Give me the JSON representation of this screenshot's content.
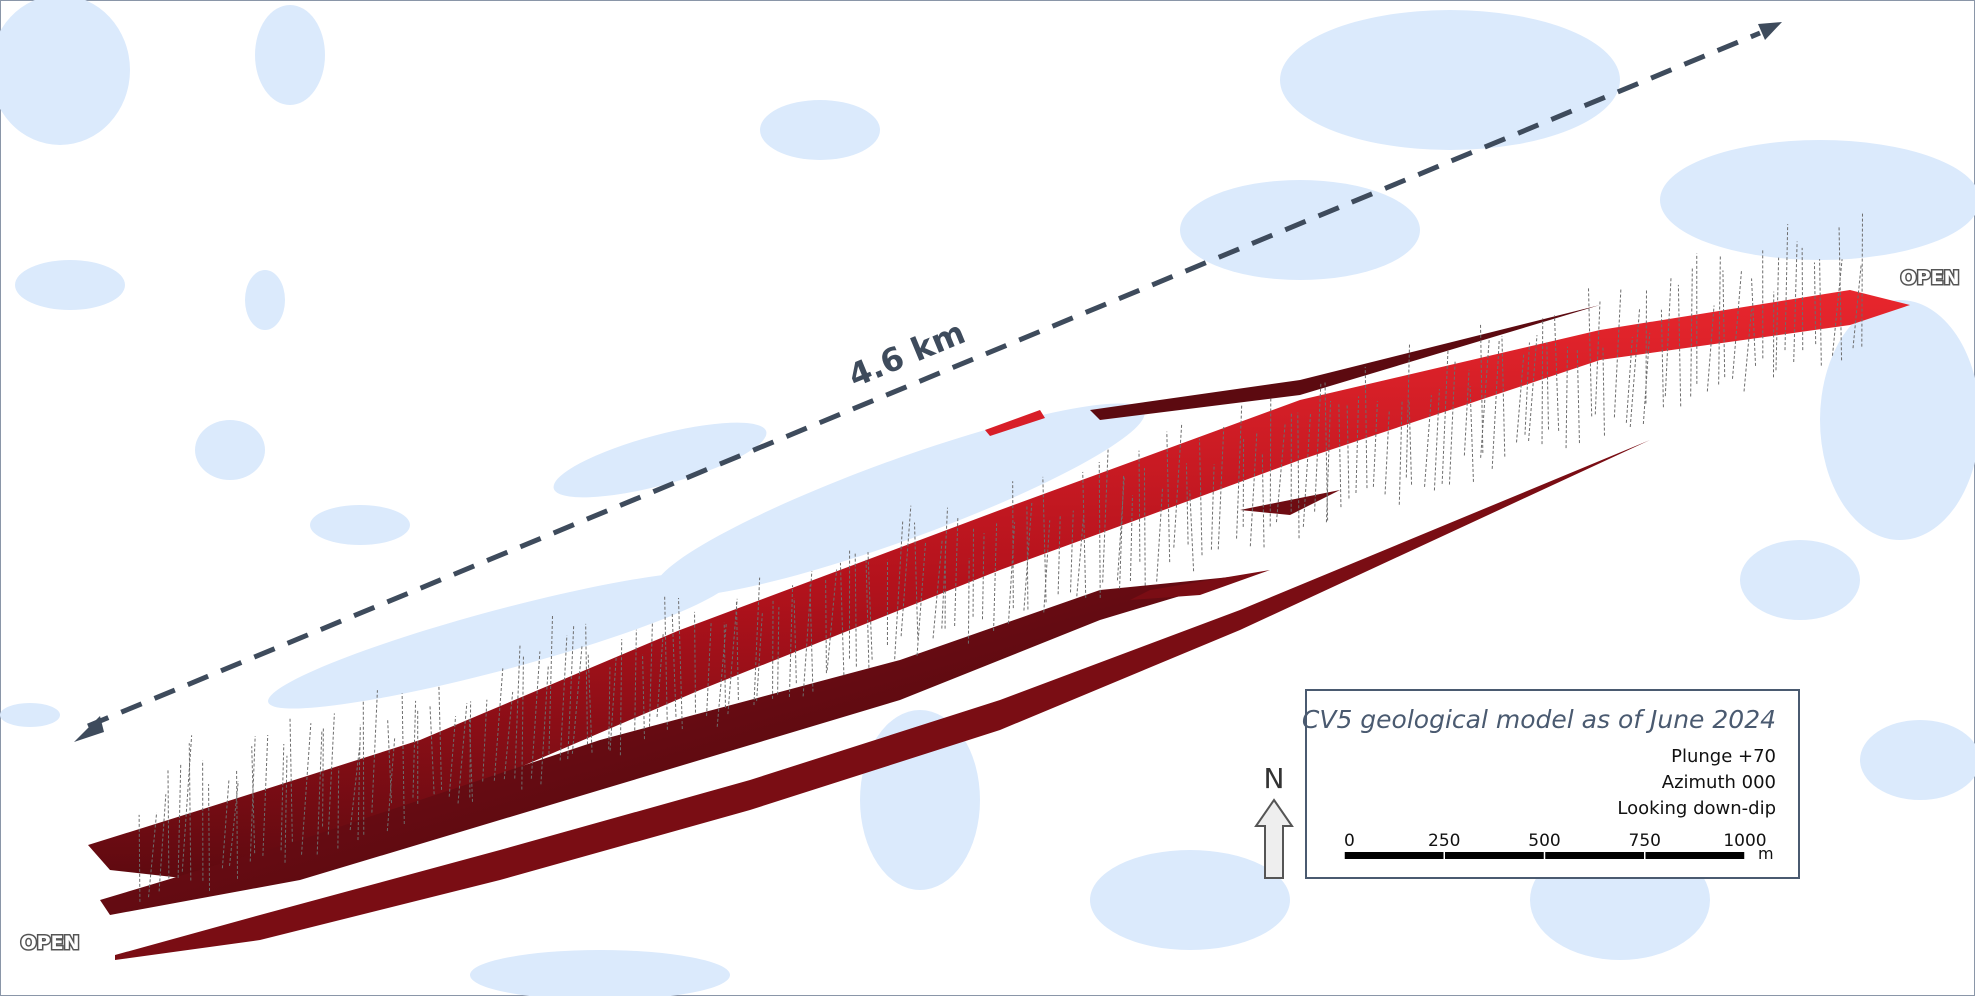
{
  "map": {
    "length_label": "4.6 km",
    "open_labels": [
      "OPEN",
      "OPEN"
    ],
    "north_label": "N",
    "legend": {
      "title": "CV5 geological model as of June 2024",
      "lines": [
        "Plunge +70",
        "Azimuth 000",
        "Looking down-dip"
      ],
      "scale_bar": {
        "ticks": [
          0,
          250,
          500,
          750,
          1000
        ],
        "unit": "m"
      }
    }
  }
}
